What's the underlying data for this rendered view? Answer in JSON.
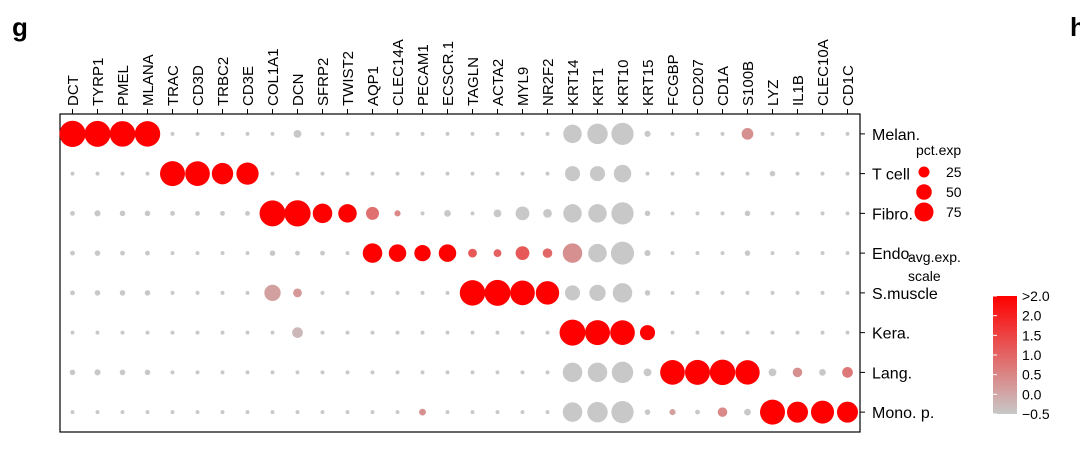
{
  "panel_label": "g",
  "next_panel_label": "h",
  "chart_data": {
    "type": "dotplot",
    "genes": [
      "DCT",
      "TYRP1",
      "PMEL",
      "MLANA",
      "TRAC",
      "CD3D",
      "TRBC2",
      "CD3E",
      "COL1A1",
      "DCN",
      "SFRP2",
      "TWIST2",
      "AQP1",
      "CLEC14A",
      "PECAM1",
      "ECSCR.1",
      "TAGLN",
      "ACTA2",
      "MYL9",
      "NR2F2",
      "KRT14",
      "KRT1",
      "KRT10",
      "KRT15",
      "FCGBP",
      "CD207",
      "CD1A",
      "S100B",
      "LYZ",
      "IL1B",
      "CLEC10A",
      "CD1C"
    ],
    "cell_types": [
      "Melan.",
      "T cell",
      "Fibro.",
      "Endo.",
      "S.muscle",
      "Kera.",
      "Lang.",
      "Mono. p."
    ],
    "pct_exp": [
      [
        90,
        88,
        86,
        85,
        2,
        2,
        2,
        2,
        2,
        8,
        2,
        2,
        2,
        2,
        2,
        2,
        2,
        2,
        2,
        2,
        45,
        55,
        65,
        5,
        2,
        2,
        2,
        18,
        2,
        2,
        2,
        2
      ],
      [
        2,
        2,
        2,
        2,
        82,
        80,
        60,
        65,
        2,
        2,
        2,
        2,
        2,
        2,
        2,
        2,
        2,
        2,
        2,
        2,
        30,
        30,
        40,
        2,
        2,
        2,
        2,
        2,
        4,
        2,
        2,
        2
      ],
      [
        3,
        5,
        4,
        4,
        3,
        3,
        3,
        3,
        88,
        90,
        50,
        45,
        22,
        5,
        2,
        6,
        2,
        8,
        25,
        10,
        45,
        45,
        65,
        4,
        2,
        2,
        2,
        4,
        2,
        2,
        2,
        2
      ],
      [
        3,
        4,
        3,
        3,
        2,
        2,
        2,
        2,
        4,
        3,
        3,
        2,
        50,
        40,
        35,
        40,
        10,
        8,
        25,
        12,
        50,
        45,
        70,
        5,
        2,
        2,
        2,
        4,
        2,
        2,
        2,
        2
      ],
      [
        3,
        4,
        4,
        4,
        2,
        2,
        2,
        2,
        35,
        10,
        2,
        2,
        2,
        2,
        2,
        2,
        85,
        88,
        80,
        72,
        30,
        35,
        50,
        4,
        2,
        2,
        2,
        2,
        2,
        2,
        2,
        2
      ],
      [
        2,
        2,
        2,
        2,
        2,
        2,
        2,
        2,
        2,
        15,
        2,
        2,
        2,
        2,
        2,
        2,
        2,
        2,
        2,
        2,
        88,
        82,
        80,
        30,
        2,
        2,
        2,
        2,
        2,
        2,
        2,
        2
      ],
      [
        4,
        5,
        4,
        4,
        2,
        2,
        2,
        2,
        2,
        2,
        2,
        2,
        2,
        2,
        2,
        2,
        2,
        2,
        2,
        2,
        50,
        50,
        60,
        8,
        80,
        82,
        85,
        78,
        8,
        12,
        6,
        15
      ],
      [
        2,
        2,
        2,
        2,
        2,
        2,
        2,
        2,
        2,
        2,
        2,
        2,
        2,
        2,
        6,
        2,
        2,
        2,
        2,
        2,
        50,
        55,
        65,
        4,
        5,
        3,
        12,
        6,
        82,
        58,
        70,
        58
      ]
    ],
    "avg_exp": [
      [
        2.2,
        2.2,
        2.2,
        2.2,
        -0.5,
        -0.5,
        -0.5,
        -0.5,
        -0.5,
        -0.5,
        -0.5,
        -0.5,
        -0.5,
        -0.5,
        -0.5,
        -0.5,
        -0.5,
        -0.5,
        -0.5,
        -0.5,
        -0.5,
        -0.5,
        -0.5,
        -0.5,
        -0.5,
        -0.5,
        -0.5,
        0.2,
        -0.5,
        -0.5,
        -0.5,
        -0.5
      ],
      [
        -0.5,
        -0.5,
        -0.5,
        -0.5,
        2.2,
        2.2,
        2.2,
        2.2,
        -0.5,
        -0.5,
        -0.5,
        -0.5,
        -0.5,
        -0.5,
        -0.5,
        -0.5,
        -0.5,
        -0.5,
        -0.5,
        -0.5,
        -0.5,
        -0.5,
        -0.5,
        -0.5,
        -0.5,
        -0.5,
        -0.5,
        -0.5,
        -0.5,
        -0.5,
        -0.5,
        -0.5
      ],
      [
        -0.5,
        -0.5,
        -0.5,
        -0.5,
        -0.5,
        -0.5,
        -0.5,
        -0.5,
        2.2,
        2.2,
        2.2,
        2.2,
        0.6,
        0.3,
        -0.5,
        -0.5,
        -0.5,
        -0.5,
        -0.5,
        -0.5,
        -0.5,
        -0.5,
        -0.5,
        -0.5,
        -0.5,
        -0.5,
        -0.5,
        -0.5,
        -0.5,
        -0.5,
        -0.5,
        -0.5
      ],
      [
        -0.5,
        -0.5,
        -0.5,
        -0.5,
        -0.5,
        -0.5,
        -0.5,
        -0.5,
        -0.5,
        -0.5,
        -0.5,
        -0.5,
        2.2,
        2.2,
        2.2,
        2.2,
        0.9,
        0.8,
        0.9,
        0.7,
        0.2,
        -0.5,
        -0.5,
        -0.5,
        -0.5,
        -0.5,
        -0.5,
        -0.5,
        -0.5,
        -0.5,
        -0.5,
        -0.5
      ],
      [
        -0.5,
        -0.5,
        -0.5,
        -0.5,
        -0.5,
        -0.5,
        -0.5,
        -0.5,
        0.0,
        0.1,
        -0.5,
        -0.5,
        -0.5,
        -0.5,
        -0.5,
        -0.5,
        2.1,
        2.2,
        2.2,
        2.2,
        -0.5,
        -0.5,
        -0.5,
        -0.5,
        -0.5,
        -0.5,
        -0.5,
        -0.5,
        -0.5,
        -0.5,
        -0.5,
        -0.5
      ],
      [
        -0.5,
        -0.5,
        -0.5,
        -0.5,
        -0.5,
        -0.5,
        -0.5,
        -0.5,
        -0.5,
        -0.3,
        -0.5,
        -0.5,
        -0.5,
        -0.5,
        -0.5,
        -0.5,
        -0.5,
        -0.5,
        -0.5,
        -0.5,
        2.2,
        2.2,
        2.2,
        2.2,
        -0.5,
        -0.5,
        -0.5,
        -0.5,
        -0.5,
        -0.5,
        -0.5,
        -0.5
      ],
      [
        -0.5,
        -0.5,
        -0.5,
        -0.5,
        -0.5,
        -0.5,
        -0.5,
        -0.5,
        -0.5,
        -0.5,
        -0.5,
        -0.5,
        -0.5,
        -0.5,
        -0.5,
        -0.5,
        -0.5,
        -0.5,
        -0.5,
        -0.5,
        -0.5,
        -0.5,
        -0.5,
        -0.5,
        2.2,
        2.2,
        2.2,
        2.2,
        -0.5,
        0.2,
        -0.5,
        0.5
      ],
      [
        -0.5,
        -0.5,
        -0.5,
        -0.5,
        -0.5,
        -0.5,
        -0.5,
        -0.5,
        -0.5,
        -0.5,
        -0.5,
        -0.5,
        -0.5,
        -0.5,
        0.2,
        -0.5,
        -0.5,
        -0.5,
        -0.5,
        -0.5,
        -0.5,
        -0.5,
        -0.5,
        -0.5,
        0.0,
        -0.5,
        0.3,
        -0.5,
        2.2,
        2.2,
        2.2,
        2.2
      ]
    ],
    "legend": {
      "size_title": "pct.exp",
      "size_values": [
        25,
        50,
        75
      ],
      "color_title_line1": "avg.exp.",
      "color_title_line2": "scale",
      "color_ticks": [
        ">2.0",
        "2.0",
        "1.5",
        "1.0",
        "0.5",
        "0.0",
        "−0.5"
      ],
      "color_low": "#c8c8c8",
      "color_high": "#ff0000"
    }
  }
}
